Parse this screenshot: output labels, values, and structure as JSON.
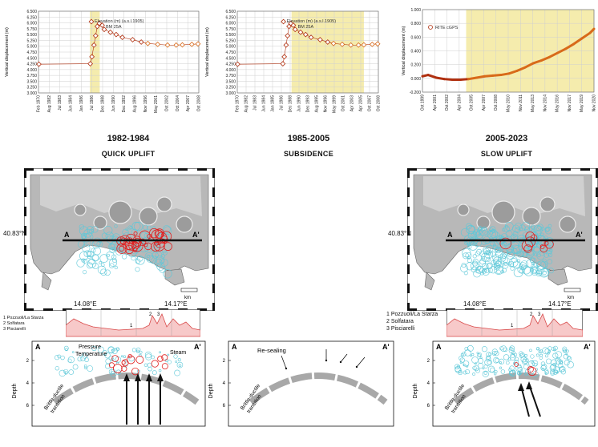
{
  "charts": {
    "left": {
      "ylabel": "Vertical displacement (m)",
      "legend_label": "Elevation  (m)  (a.s.l.1905)",
      "legend_sub": "BM 25A",
      "yticks": [
        "6.500",
        "6.250",
        "6.000",
        "5.750",
        "5.500",
        "5.250",
        "5.000",
        "4.750",
        "4.500",
        "4.250",
        "4.000",
        "3.750",
        "3.500",
        "3.250",
        "3.000"
      ],
      "xticks": [
        "Feb 1970",
        "Aug 1982",
        "Jul 1983",
        "Jun 1984",
        "Jan 1986",
        "Jul 1986",
        "Dec 1988",
        "Jun 1990",
        "Dec 1992",
        "Aug 1996",
        "Nov 1996",
        "May 2001",
        "Oct 2002",
        "Oct 2004",
        "Apr 2007",
        "Oct 2008"
      ]
    },
    "middle": {
      "ylabel": "Vertical displacement (m)",
      "legend_label": "Elevation  (m)  (a.s.l.1905)",
      "legend_sub": "BM 25A",
      "yticks": [
        "6.500",
        "6.250",
        "6.000",
        "5.750",
        "5.500",
        "5.250",
        "5.000",
        "4.750",
        "4.500",
        "4.250",
        "4.000",
        "3.750",
        "3.500",
        "3.250",
        "3.000"
      ],
      "xticks": [
        "Feb 1970",
        "Aug 1982",
        "Jul 1983",
        "Jun 1984",
        "Jan 1985",
        "Jul 1986",
        "Dec 1988",
        "Jun 1990",
        "Dec 1993",
        "Aug 1995",
        "Nov 1996",
        "May 1999",
        "Oct 2001",
        "Apr 2003",
        "Apr 2005",
        "Oct 2007",
        "Oct 2008"
      ]
    },
    "right": {
      "ylabel": "Vertical displacement (m)",
      "legend_label": "RITE cGPS",
      "yticks": [
        "1.000",
        "0.800",
        "0.600",
        "0.400",
        "0.200",
        "0.000",
        "-0.200"
      ],
      "xticks": [
        "Oct 1999",
        "Apr 2001",
        "Oct 2002",
        "Apr 2004",
        "Oct 2005",
        "Apr 2007",
        "Oct 2008",
        "May 2010",
        "Nov 2011",
        "May 2013",
        "Nov 2014",
        "May 2016",
        "Nov 2017",
        "May 2019",
        "Nov 2020"
      ]
    }
  },
  "periods": [
    {
      "years": "1982-1984",
      "phase": "QUICK UPLIFT"
    },
    {
      "years": "1985-2005",
      "phase": "SUBSIDENCE"
    },
    {
      "years": "2005-2023",
      "phase": "SLOW UPLIFT"
    }
  ],
  "maps": {
    "lat_label": "40.83°N",
    "lon_left": "14.08°E",
    "lon_right": "14.17°E",
    "scale_label": "km",
    "section_start": "A",
    "section_end": "A'"
  },
  "profile": {
    "legend": [
      "1 Pozzuoli/La Starza",
      "2 Solfatara",
      "3 Pisciarelli"
    ],
    "markers": [
      "1",
      "2",
      "3"
    ]
  },
  "sections": {
    "depth_label": "Depth",
    "depth_ticks": [
      "2",
      "4",
      "6"
    ],
    "transition_label_1": "Brittle-ductile",
    "transition_label_2": "transition",
    "left_annotations": {
      "pressure": "Pressure",
      "temperature": "Temperature",
      "steam": "Steam"
    },
    "middle_annotation": "Re-sealing",
    "start": "A",
    "end": "A'"
  },
  "colors": {
    "uplift_band": "#f5ecad",
    "series_dark": "#b03010",
    "series_orange": "#d86a1a",
    "seismic_cyan": "#5ec8d8",
    "seismic_red": "#e02020",
    "profile_fill": "#f7c9c9",
    "profile_line": "#d84848",
    "arc": "#a8a8a8"
  },
  "chart_data": [
    {
      "type": "scatter",
      "ylabel": "Vertical displacement (m)",
      "ylim": [
        3.0,
        6.5
      ],
      "series": [
        {
          "name": "Elevation (m) (a.s.l.1905)",
          "x": [
            1970.1,
            1982.6,
            1983.0,
            1983.5,
            1983.9,
            1984.3,
            1984.8,
            1985.5,
            1986.0,
            1987.5,
            1988.9,
            1990.4,
            1992.9,
            1995.0,
            1996.6,
            1999.0,
            2001.4,
            2003.5,
            2005.0,
            2007.3,
            2008.8
          ],
          "y": [
            4.23,
            4.25,
            4.55,
            5.05,
            5.45,
            5.85,
            5.98,
            5.9,
            5.72,
            5.6,
            5.5,
            5.38,
            5.28,
            5.18,
            5.12,
            5.08,
            5.05,
            5.05,
            5.06,
            5.08,
            5.1
          ]
        }
      ],
      "shaded_period": "1982-1984",
      "grid": true
    },
    {
      "type": "scatter",
      "ylabel": "Vertical displacement (m)",
      "ylim": [
        3.0,
        6.5
      ],
      "series": [
        {
          "name": "Elevation (m) (a.s.l.1905)",
          "x": [
            1970.1,
            1982.6,
            1983.0,
            1983.5,
            1983.9,
            1984.3,
            1984.8,
            1985.5,
            1986.0,
            1987.5,
            1988.9,
            1990.4,
            1992.9,
            1995.0,
            1996.6,
            1999.0,
            2001.4,
            2003.5,
            2005.0,
            2007.3,
            2008.8
          ],
          "y": [
            4.23,
            4.25,
            4.55,
            5.05,
            5.45,
            5.85,
            5.98,
            5.9,
            5.72,
            5.6,
            5.5,
            5.38,
            5.28,
            5.18,
            5.12,
            5.08,
            5.05,
            5.05,
            5.06,
            5.08,
            5.1
          ]
        }
      ],
      "shaded_period": "1985-2005",
      "grid": true
    },
    {
      "type": "line",
      "ylabel": "Vertical displacement (m)",
      "ylim": [
        -0.2,
        1.0
      ],
      "series": [
        {
          "name": "RITE cGPS",
          "x": [
            1999.8,
            2000.5,
            2001.5,
            2002.5,
            2003.5,
            2004.5,
            2005.5,
            2006.5,
            2007.5,
            2008.5,
            2009.5,
            2010.5,
            2011.5,
            2012.5,
            2013.5,
            2014.5,
            2015.5,
            2016.5,
            2017.5,
            2018.5,
            2019.5,
            2020.5,
            2021.0
          ],
          "y": [
            0.03,
            0.05,
            0.01,
            -0.01,
            -0.02,
            -0.02,
            -0.01,
            0.01,
            0.03,
            0.04,
            0.05,
            0.07,
            0.11,
            0.16,
            0.22,
            0.26,
            0.31,
            0.37,
            0.43,
            0.5,
            0.58,
            0.66,
            0.72
          ]
        }
      ],
      "shaded_period": "2005-2023",
      "grid": true
    }
  ]
}
